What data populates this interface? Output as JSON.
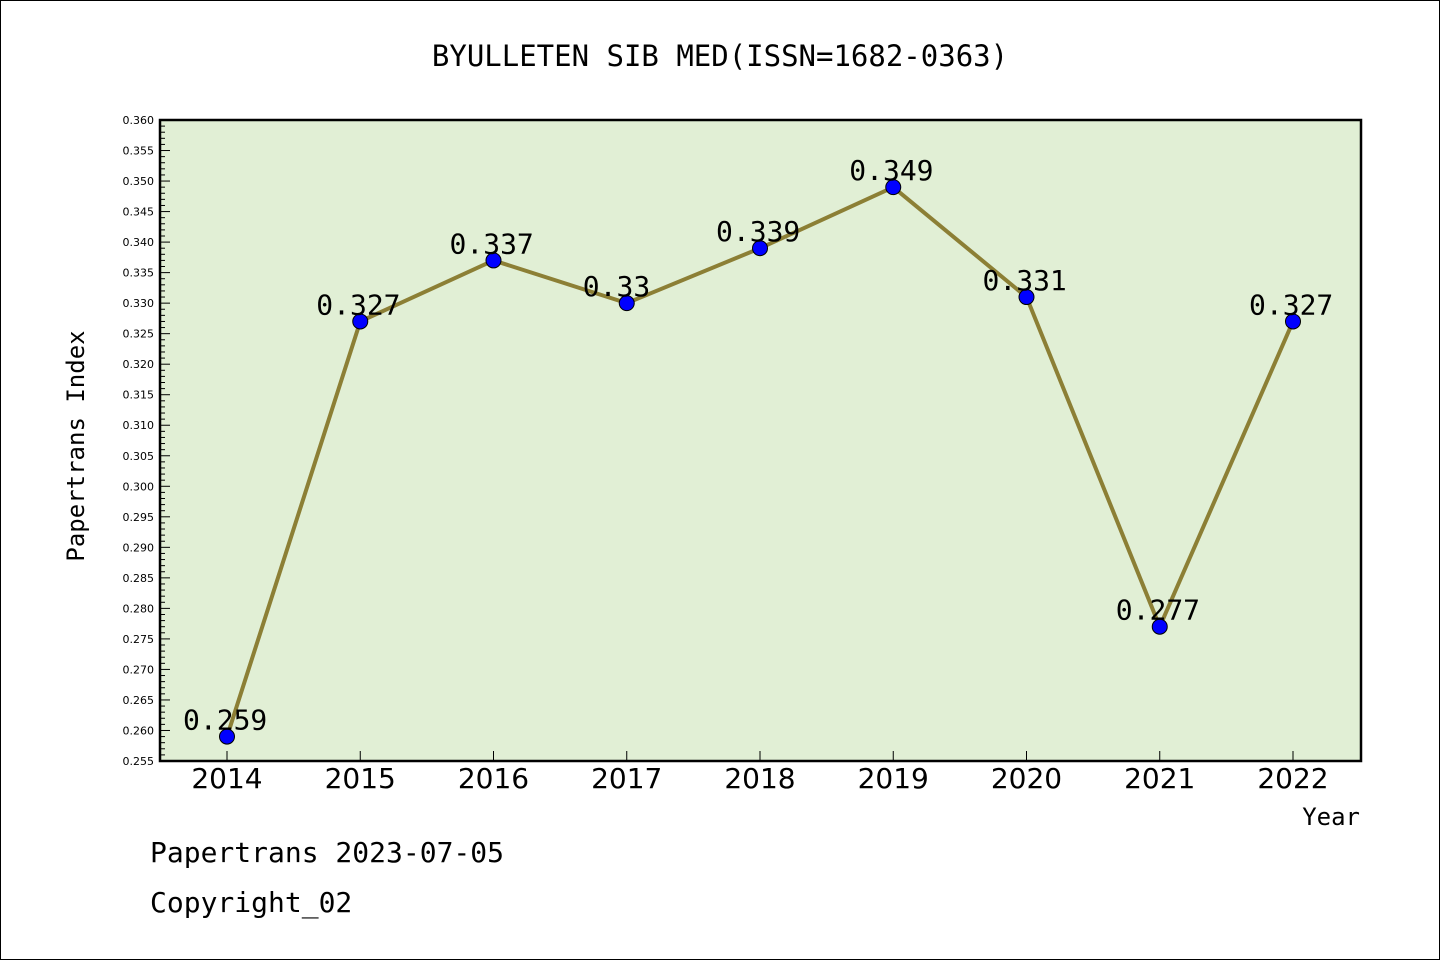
{
  "chart_data": {
    "type": "line",
    "title": "BYULLETEN SIB MED(ISSN=1682-0363)",
    "xlabel": "Year",
    "ylabel": "Papertrans Index",
    "categories": [
      "2014",
      "2015",
      "2016",
      "2017",
      "2018",
      "2019",
      "2020",
      "2021",
      "2022"
    ],
    "values": [
      0.259,
      0.327,
      0.337,
      0.33,
      0.339,
      0.349,
      0.331,
      0.277,
      0.327
    ],
    "data_labels": [
      "0.259",
      "0.327",
      "0.337",
      "0.33",
      "0.339",
      "0.349",
      "0.331",
      "0.277",
      "0.327"
    ],
    "ylim": [
      0.255,
      0.36
    ],
    "ytick_step": 0.005,
    "yticks": [
      "0.255",
      "0.260",
      "0.265",
      "0.270",
      "0.275",
      "0.280",
      "0.285",
      "0.290",
      "0.295",
      "0.300",
      "0.305",
      "0.310",
      "0.315",
      "0.320",
      "0.325",
      "0.330",
      "0.335",
      "0.340",
      "0.345",
      "0.350",
      "0.355",
      "0.360"
    ],
    "grid": false,
    "colors": {
      "plot_background": "#e1efd5",
      "line": "#8c7f35",
      "marker": "#0000ff"
    }
  },
  "footer": {
    "line1": "Papertrans 2023-07-05",
    "line2": "Copyright_02"
  }
}
